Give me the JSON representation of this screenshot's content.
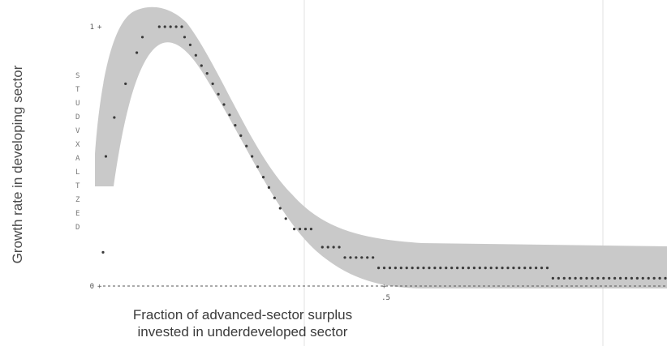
{
  "chart_data": {
    "type": "scatter",
    "title": "",
    "xlabel_lines": [
      "Fraction of advanced-sector surplus",
      "invested in underdeveloped sector"
    ],
    "ylabel": "Growth rate in developing sector",
    "xlim": [
      0,
      1.0
    ],
    "ylim": [
      0,
      1
    ],
    "y_ticks": [
      {
        "value": 0,
        "label": "0"
      },
      {
        "value": 1,
        "label": "1"
      }
    ],
    "x_ticks": [
      {
        "value": 0.5,
        "label": ".5"
      }
    ],
    "printout_letters": [
      "S",
      "T",
      "U",
      "D",
      "V",
      "X",
      "A",
      "L",
      "T",
      "Z",
      "E",
      "D"
    ],
    "colors": {
      "band": "#c9c9c9",
      "dots": "#3a3a3a",
      "text": "#444444"
    },
    "series": [
      {
        "points": [
          [
            0.0,
            0.13
          ],
          [
            0.005,
            0.5
          ],
          [
            0.02,
            0.65
          ],
          [
            0.04,
            0.78
          ],
          [
            0.06,
            0.9
          ],
          [
            0.07,
            0.96
          ],
          [
            0.1,
            1.0
          ],
          [
            0.11,
            1.0
          ],
          [
            0.12,
            1.0
          ],
          [
            0.13,
            1.0
          ],
          [
            0.14,
            1.0
          ],
          [
            0.145,
            0.96
          ],
          [
            0.155,
            0.93
          ],
          [
            0.165,
            0.89
          ],
          [
            0.175,
            0.85
          ],
          [
            0.185,
            0.82
          ],
          [
            0.195,
            0.78
          ],
          [
            0.205,
            0.74
          ],
          [
            0.215,
            0.7
          ],
          [
            0.225,
            0.66
          ],
          [
            0.235,
            0.62
          ],
          [
            0.245,
            0.58
          ],
          [
            0.255,
            0.54
          ],
          [
            0.265,
            0.5
          ],
          [
            0.275,
            0.46
          ],
          [
            0.285,
            0.42
          ],
          [
            0.295,
            0.38
          ],
          [
            0.305,
            0.34
          ],
          [
            0.315,
            0.3
          ],
          [
            0.325,
            0.26
          ],
          [
            0.34,
            0.22
          ],
          [
            0.35,
            0.22
          ],
          [
            0.36,
            0.22
          ],
          [
            0.37,
            0.22
          ],
          [
            0.39,
            0.15
          ],
          [
            0.4,
            0.15
          ],
          [
            0.41,
            0.15
          ],
          [
            0.42,
            0.15
          ],
          [
            0.43,
            0.11
          ],
          [
            0.44,
            0.11
          ],
          [
            0.45,
            0.11
          ],
          [
            0.46,
            0.11
          ],
          [
            0.47,
            0.11
          ],
          [
            0.48,
            0.11
          ],
          [
            0.49,
            0.07
          ],
          [
            0.5,
            0.07
          ],
          [
            0.51,
            0.07
          ],
          [
            0.52,
            0.07
          ],
          [
            0.53,
            0.07
          ],
          [
            0.54,
            0.07
          ],
          [
            0.55,
            0.07
          ],
          [
            0.56,
            0.07
          ],
          [
            0.57,
            0.07
          ],
          [
            0.58,
            0.07
          ],
          [
            0.59,
            0.07
          ],
          [
            0.6,
            0.07
          ],
          [
            0.61,
            0.07
          ],
          [
            0.62,
            0.07
          ],
          [
            0.63,
            0.07
          ],
          [
            0.64,
            0.07
          ],
          [
            0.65,
            0.07
          ],
          [
            0.66,
            0.07
          ],
          [
            0.67,
            0.07
          ],
          [
            0.68,
            0.07
          ],
          [
            0.69,
            0.07
          ],
          [
            0.7,
            0.07
          ],
          [
            0.71,
            0.07
          ],
          [
            0.72,
            0.07
          ],
          [
            0.73,
            0.07
          ],
          [
            0.74,
            0.07
          ],
          [
            0.75,
            0.07
          ],
          [
            0.76,
            0.07
          ],
          [
            0.77,
            0.07
          ],
          [
            0.78,
            0.07
          ],
          [
            0.79,
            0.07
          ],
          [
            0.8,
            0.03
          ],
          [
            0.81,
            0.03
          ],
          [
            0.82,
            0.03
          ],
          [
            0.83,
            0.03
          ],
          [
            0.84,
            0.03
          ],
          [
            0.85,
            0.03
          ],
          [
            0.86,
            0.03
          ],
          [
            0.87,
            0.03
          ],
          [
            0.88,
            0.03
          ],
          [
            0.89,
            0.03
          ],
          [
            0.9,
            0.03
          ],
          [
            0.91,
            0.03
          ],
          [
            0.92,
            0.03
          ],
          [
            0.93,
            0.03
          ],
          [
            0.94,
            0.03
          ],
          [
            0.95,
            0.03
          ],
          [
            0.96,
            0.03
          ],
          [
            0.97,
            0.03
          ],
          [
            0.98,
            0.03
          ],
          [
            0.99,
            0.03
          ],
          [
            1.0,
            0.03
          ]
        ]
      }
    ]
  }
}
